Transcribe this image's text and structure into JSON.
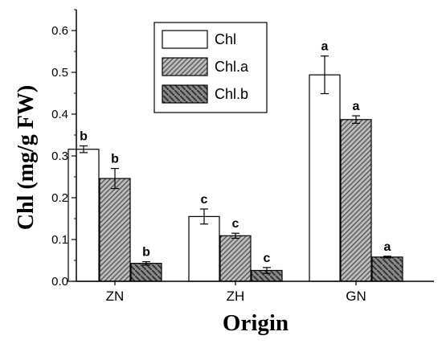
{
  "chart_data": {
    "type": "bar",
    "xlabel": "Origin",
    "ylabel": "Chl (mg/g FW)",
    "categories": [
      "ZN",
      "ZH",
      "GN"
    ],
    "ylim": [
      0,
      0.65
    ],
    "yticks": [
      "0.0",
      "0.1",
      "0.2",
      "0.3",
      "0.4",
      "0.5",
      "0.6"
    ],
    "grid": false,
    "legend_position": "top-center",
    "series": [
      {
        "name": "Chl",
        "fill": "white",
        "values": [
          0.316,
          0.155,
          0.494
        ],
        "errors": [
          0.008,
          0.018,
          0.045
        ],
        "significance": [
          "b",
          "c",
          "a"
        ]
      },
      {
        "name": "Chl.a",
        "fill": "light-hatch",
        "values": [
          0.246,
          0.109,
          0.387
        ],
        "errors": [
          0.024,
          0.006,
          0.009
        ],
        "significance": [
          "b",
          "c",
          "a"
        ]
      },
      {
        "name": "Chl.b",
        "fill": "dark-hatch",
        "values": [
          0.043,
          0.026,
          0.058
        ],
        "errors": [
          0.004,
          0.007,
          0.002
        ],
        "significance": [
          "b",
          "c",
          "a"
        ]
      }
    ]
  }
}
